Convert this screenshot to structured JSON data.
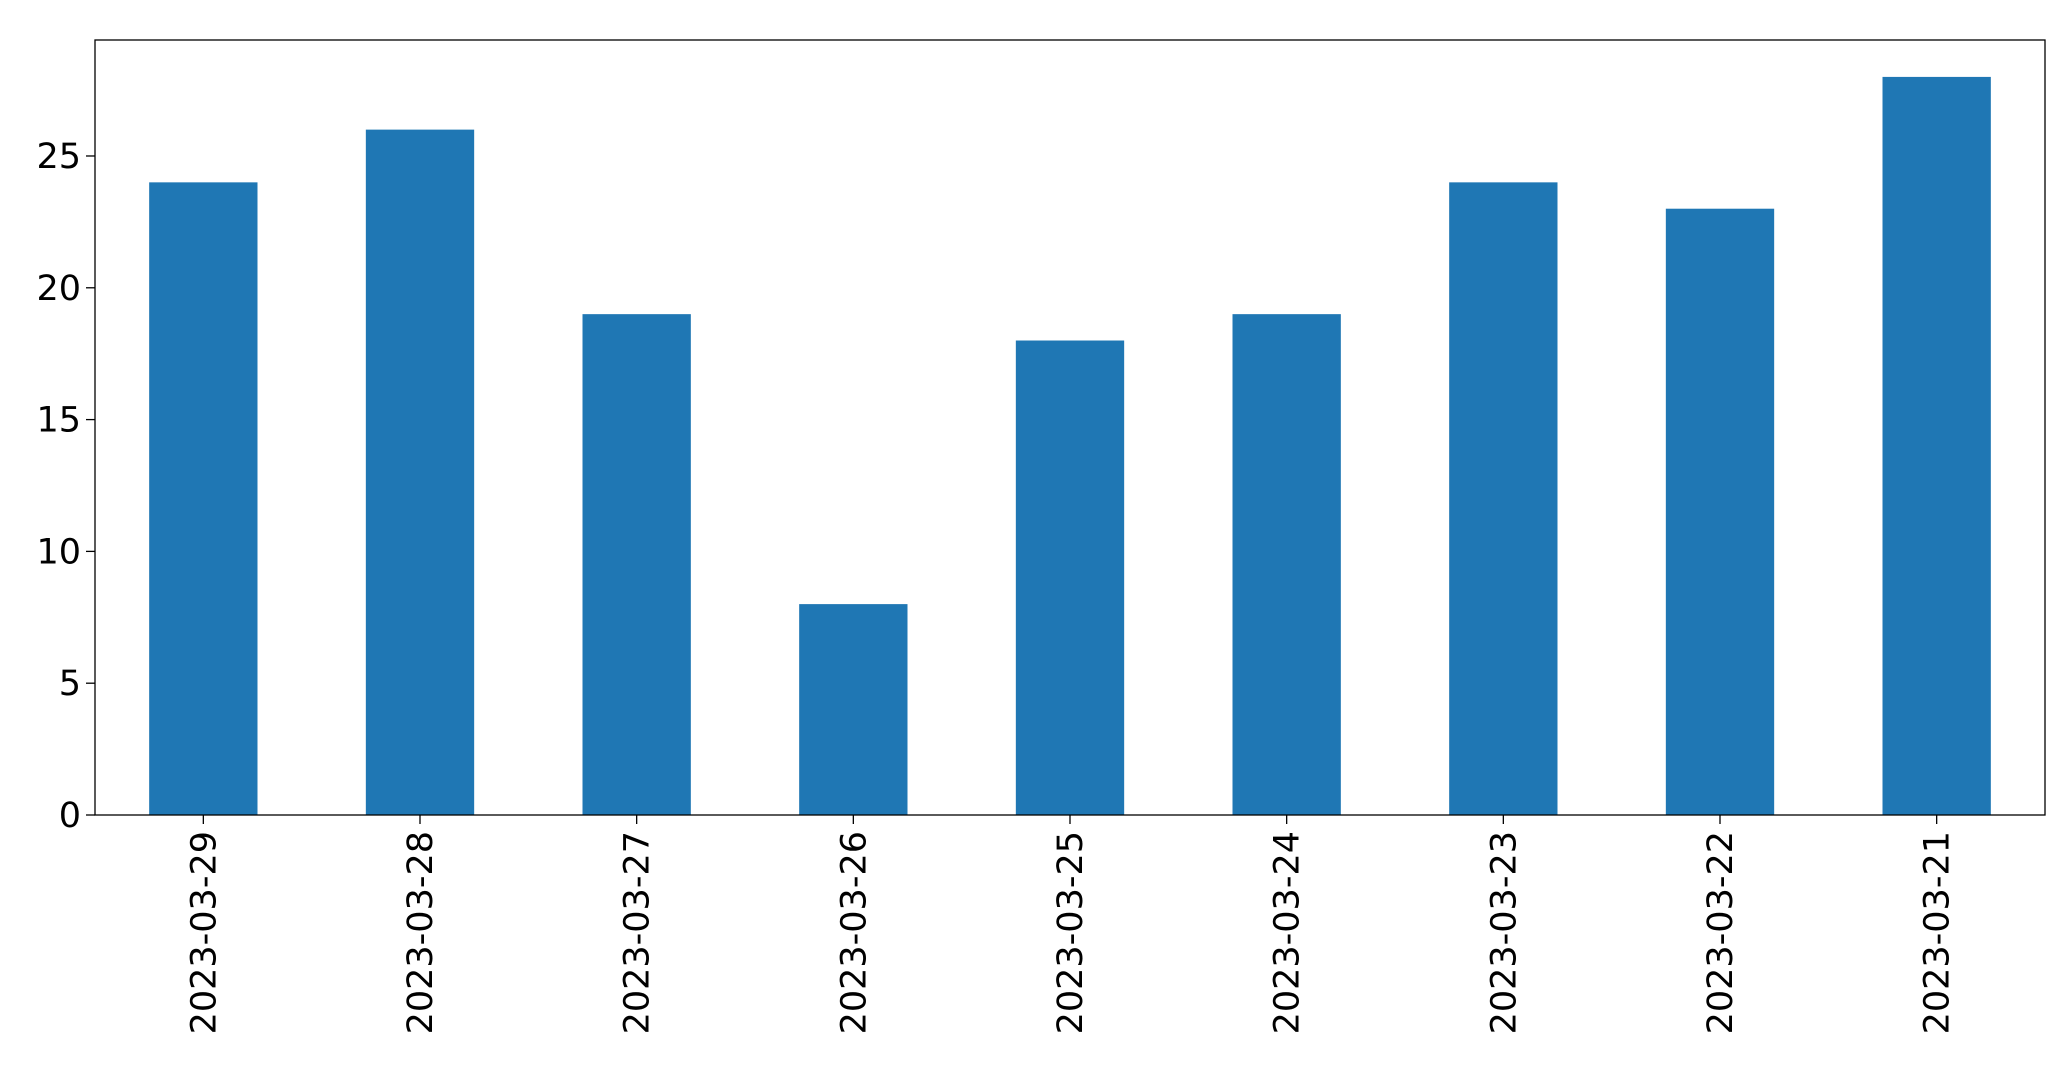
{
  "chart_data": {
    "type": "bar",
    "title": "",
    "xlabel": "",
    "ylabel": "",
    "categories": [
      "2023-03-29",
      "2023-03-28",
      "2023-03-27",
      "2023-03-26",
      "2023-03-25",
      "2023-03-24",
      "2023-03-23",
      "2023-03-22",
      "2023-03-21"
    ],
    "values": [
      24,
      26,
      19,
      8,
      18,
      19,
      24,
      23,
      28
    ],
    "ylim": [
      0,
      29.4
    ],
    "yticks": [
      0,
      5,
      10,
      15,
      20,
      25
    ],
    "ytick_labels": [
      "0",
      "5",
      "10",
      "15",
      "20",
      "25"
    ],
    "bar_color": "#1f77b4",
    "grid": false,
    "legend": "none",
    "x_tick_rotation": "vertical"
  }
}
